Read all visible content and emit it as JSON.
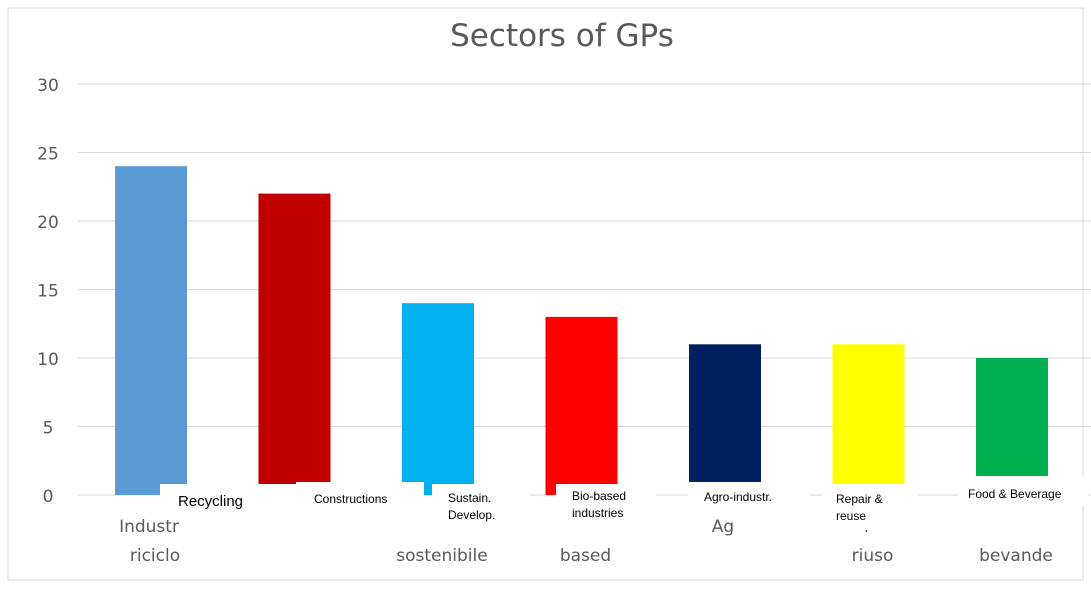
{
  "chart_data": {
    "type": "bar",
    "title": "Sectors of GPs",
    "ylim": [
      0,
      30
    ],
    "y_ticks": [
      "0",
      "5",
      "10",
      "15",
      "20",
      "25",
      "30"
    ],
    "grid": true,
    "categories": [
      "Recycling",
      "Constructions",
      "Sustain.\nDevelop.",
      "Bio-based\nindustries",
      "Agro-industr.",
      "Repair &\nreuse",
      "Food & Beverage"
    ],
    "values": [
      24,
      22,
      14,
      13,
      11,
      11,
      10
    ],
    "colors": [
      "#5b9bd5",
      "#c00000",
      "#00b0f0",
      "#ff0000",
      "#002060",
      "#ffff00",
      "#00b050"
    ],
    "underlying_axis_text": {
      "row1": [
        "Industr",
        "",
        "",
        "",
        "Ag",
        "i",
        ""
      ],
      "row2": [
        "riciclo",
        "",
        "sostenibile",
        "based",
        "",
        "riuso",
        "bevande"
      ]
    }
  }
}
